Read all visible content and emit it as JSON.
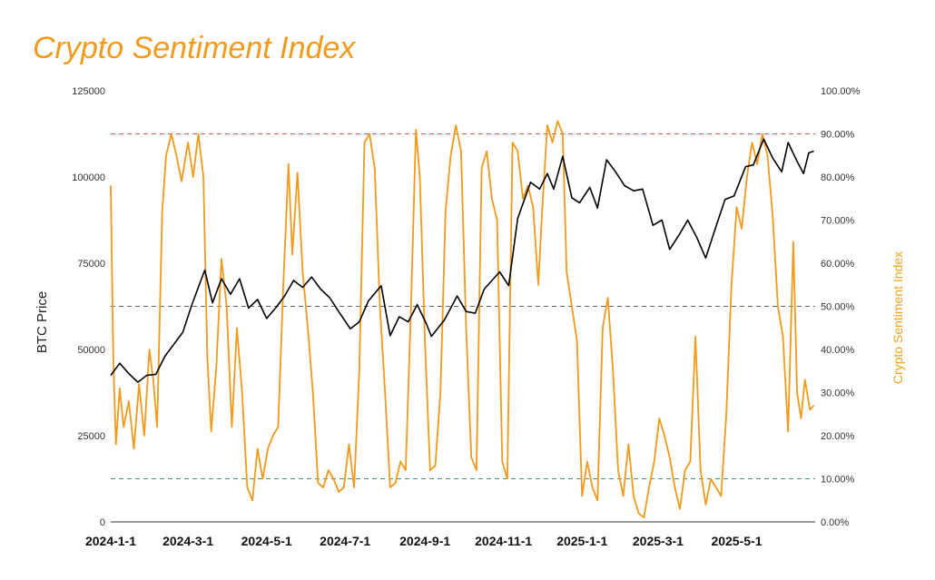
{
  "chart_data": {
    "type": "line",
    "title": "Crypto Sentiment Index",
    "xlabel": "",
    "ylabel_left": "BTC Price",
    "ylabel_right": "Crypto Sentiment Index",
    "x_ticks": [
      "2024-1-1",
      "2024-3-1",
      "2024-5-1",
      "2024-7-1",
      "2024-9-1",
      "2024-11-1",
      "2025-1-1",
      "2025-3-1",
      "2025-5-1"
    ],
    "x_range": [
      "2024-01-01",
      "2025-07-01"
    ],
    "y_left_ticks": [
      "0",
      "25000",
      "50000",
      "75000",
      "100000",
      "125000"
    ],
    "y_left_range": [
      0,
      125000
    ],
    "y_right_ticks": [
      "0.00%",
      "10.00%",
      "20.00%",
      "30.00%",
      "40.00%",
      "50.00%",
      "60.00%",
      "70.00%",
      "80.00%",
      "90.00%",
      "100.00%"
    ],
    "y_right_range": [
      0,
      100
    ],
    "reference_lines": [
      {
        "axis": "right",
        "value": 90,
        "color": "#e05555"
      },
      {
        "axis": "right",
        "value": 50,
        "color": "#666666"
      },
      {
        "axis": "right",
        "value": 10,
        "color": "#5a8f6a"
      }
    ],
    "colors": {
      "title": "#f29a1b",
      "btc": "#000000",
      "sentiment": "#f29a1b",
      "right_label": "#f2a21b"
    },
    "grid": false,
    "series": [
      {
        "axis": "left",
        "color": "#000000",
        "points": [
          [
            "2024-01-01",
            42500
          ],
          [
            "2024-01-08",
            46000
          ],
          [
            "2024-01-15",
            43000
          ],
          [
            "2024-01-22",
            40500
          ],
          [
            "2024-01-29",
            42500
          ],
          [
            "2024-02-05",
            42800
          ],
          [
            "2024-02-12",
            48000
          ],
          [
            "2024-02-19",
            51500
          ],
          [
            "2024-02-26",
            55000
          ],
          [
            "2024-03-04",
            63000
          ],
          [
            "2024-03-11",
            70000
          ],
          [
            "2024-03-14",
            73000
          ],
          [
            "2024-03-20",
            63500
          ],
          [
            "2024-03-27",
            70500
          ],
          [
            "2024-04-03",
            66000
          ],
          [
            "2024-04-10",
            70500
          ],
          [
            "2024-04-17",
            62000
          ],
          [
            "2024-04-24",
            64500
          ],
          [
            "2024-05-01",
            59000
          ],
          [
            "2024-05-08",
            62000
          ],
          [
            "2024-05-15",
            65500
          ],
          [
            "2024-05-22",
            70000
          ],
          [
            "2024-05-29",
            68000
          ],
          [
            "2024-06-05",
            71000
          ],
          [
            "2024-06-12",
            67500
          ],
          [
            "2024-06-19",
            65000
          ],
          [
            "2024-06-26",
            61000
          ],
          [
            "2024-07-05",
            56000
          ],
          [
            "2024-07-12",
            58000
          ],
          [
            "2024-07-19",
            64000
          ],
          [
            "2024-07-29",
            68500
          ],
          [
            "2024-08-05",
            54000
          ],
          [
            "2024-08-12",
            59500
          ],
          [
            "2024-08-19",
            58000
          ],
          [
            "2024-08-26",
            63000
          ],
          [
            "2024-09-02",
            57500
          ],
          [
            "2024-09-06",
            53800
          ],
          [
            "2024-09-16",
            58500
          ],
          [
            "2024-09-26",
            65500
          ],
          [
            "2024-10-03",
            61000
          ],
          [
            "2024-10-10",
            60500
          ],
          [
            "2024-10-17",
            67500
          ],
          [
            "2024-10-29",
            72500
          ],
          [
            "2024-11-05",
            68500
          ],
          [
            "2024-11-12",
            88000
          ],
          [
            "2024-11-22",
            98500
          ],
          [
            "2024-11-29",
            96500
          ],
          [
            "2024-12-05",
            101000
          ],
          [
            "2024-12-10",
            96500
          ],
          [
            "2024-12-17",
            106000
          ],
          [
            "2024-12-24",
            94000
          ],
          [
            "2024-12-30",
            92500
          ],
          [
            "2025-01-07",
            97000
          ],
          [
            "2025-01-13",
            91000
          ],
          [
            "2025-01-20",
            105000
          ],
          [
            "2025-01-27",
            101500
          ],
          [
            "2025-02-03",
            97500
          ],
          [
            "2025-02-10",
            96000
          ],
          [
            "2025-02-17",
            96500
          ],
          [
            "2025-02-25",
            86000
          ],
          [
            "2025-03-04",
            87500
          ],
          [
            "2025-03-10",
            79000
          ],
          [
            "2025-03-17",
            83000
          ],
          [
            "2025-03-24",
            87500
          ],
          [
            "2025-03-31",
            82500
          ],
          [
            "2025-04-07",
            76500
          ],
          [
            "2025-04-14",
            84500
          ],
          [
            "2025-04-22",
            93500
          ],
          [
            "2025-04-29",
            94500
          ],
          [
            "2025-05-08",
            103000
          ],
          [
            "2025-05-14",
            103500
          ],
          [
            "2025-05-22",
            111000
          ],
          [
            "2025-05-29",
            105500
          ],
          [
            "2025-06-05",
            101500
          ],
          [
            "2025-06-10",
            110000
          ],
          [
            "2025-06-17",
            104500
          ],
          [
            "2025-06-22",
            101000
          ],
          [
            "2025-06-26",
            107000
          ],
          [
            "2025-06-30",
            107500
          ]
        ]
      },
      {
        "axis": "right",
        "color": "#f29a1b",
        "points": [
          [
            "2024-01-01",
            78
          ],
          [
            "2024-01-03",
            38
          ],
          [
            "2024-01-05",
            18
          ],
          [
            "2024-01-08",
            31
          ],
          [
            "2024-01-11",
            22
          ],
          [
            "2024-01-15",
            28
          ],
          [
            "2024-01-19",
            17
          ],
          [
            "2024-01-23",
            32
          ],
          [
            "2024-01-27",
            20
          ],
          [
            "2024-01-31",
            40
          ],
          [
            "2024-02-03",
            33
          ],
          [
            "2024-02-06",
            22
          ],
          [
            "2024-02-10",
            72
          ],
          [
            "2024-02-13",
            85
          ],
          [
            "2024-02-17",
            90
          ],
          [
            "2024-02-21",
            85
          ],
          [
            "2024-02-25",
            79
          ],
          [
            "2024-03-01",
            88
          ],
          [
            "2024-03-05",
            80
          ],
          [
            "2024-03-09",
            90
          ],
          [
            "2024-03-13",
            80
          ],
          [
            "2024-03-16",
            38
          ],
          [
            "2024-03-19",
            21
          ],
          [
            "2024-03-23",
            36
          ],
          [
            "2024-03-27",
            61
          ],
          [
            "2024-03-31",
            50
          ],
          [
            "2024-04-04",
            22
          ],
          [
            "2024-04-08",
            45
          ],
          [
            "2024-04-12",
            30
          ],
          [
            "2024-04-16",
            8
          ],
          [
            "2024-04-20",
            5
          ],
          [
            "2024-04-24",
            17
          ],
          [
            "2024-04-28",
            10
          ],
          [
            "2024-05-02",
            17
          ],
          [
            "2024-05-06",
            20
          ],
          [
            "2024-05-10",
            22
          ],
          [
            "2024-05-14",
            55
          ],
          [
            "2024-05-18",
            83
          ],
          [
            "2024-05-21",
            62
          ],
          [
            "2024-05-25",
            81
          ],
          [
            "2024-05-29",
            58
          ],
          [
            "2024-06-02",
            45
          ],
          [
            "2024-06-06",
            30
          ],
          [
            "2024-06-10",
            9
          ],
          [
            "2024-06-14",
            8
          ],
          [
            "2024-06-18",
            12
          ],
          [
            "2024-06-22",
            10
          ],
          [
            "2024-06-26",
            7
          ],
          [
            "2024-06-30",
            8
          ],
          [
            "2024-07-04",
            18
          ],
          [
            "2024-07-08",
            8
          ],
          [
            "2024-07-12",
            35
          ],
          [
            "2024-07-16",
            88
          ],
          [
            "2024-07-20",
            90
          ],
          [
            "2024-07-24",
            82
          ],
          [
            "2024-07-28",
            50
          ],
          [
            "2024-08-01",
            30
          ],
          [
            "2024-08-05",
            8
          ],
          [
            "2024-08-09",
            9
          ],
          [
            "2024-08-13",
            14
          ],
          [
            "2024-08-17",
            12
          ],
          [
            "2024-08-21",
            48
          ],
          [
            "2024-08-25",
            91
          ],
          [
            "2024-08-28",
            80
          ],
          [
            "2024-09-01",
            42
          ],
          [
            "2024-09-05",
            12
          ],
          [
            "2024-09-09",
            13
          ],
          [
            "2024-09-13",
            30
          ],
          [
            "2024-09-17",
            72
          ],
          [
            "2024-09-21",
            85
          ],
          [
            "2024-09-25",
            92
          ],
          [
            "2024-09-29",
            86
          ],
          [
            "2024-10-03",
            45
          ],
          [
            "2024-10-07",
            15
          ],
          [
            "2024-10-11",
            12
          ],
          [
            "2024-10-15",
            82
          ],
          [
            "2024-10-19",
            86
          ],
          [
            "2024-10-23",
            75
          ],
          [
            "2024-10-27",
            70
          ],
          [
            "2024-10-31",
            14
          ],
          [
            "2024-11-04",
            10
          ],
          [
            "2024-11-08",
            88
          ],
          [
            "2024-11-12",
            86
          ],
          [
            "2024-11-16",
            75
          ],
          [
            "2024-11-20",
            78
          ],
          [
            "2024-11-24",
            73
          ],
          [
            "2024-11-28",
            55
          ],
          [
            "2024-12-01",
            72
          ],
          [
            "2024-12-05",
            92
          ],
          [
            "2024-12-09",
            88
          ],
          [
            "2024-12-13",
            93
          ],
          [
            "2024-12-17",
            90
          ],
          [
            "2024-12-20",
            58
          ],
          [
            "2024-12-24",
            50
          ],
          [
            "2024-12-28",
            42
          ],
          [
            "2025-01-01",
            6
          ],
          [
            "2025-01-05",
            14
          ],
          [
            "2025-01-09",
            8
          ],
          [
            "2025-01-13",
            5
          ],
          [
            "2025-01-17",
            45
          ],
          [
            "2025-01-21",
            52
          ],
          [
            "2025-01-25",
            35
          ],
          [
            "2025-01-29",
            12
          ],
          [
            "2025-02-02",
            6
          ],
          [
            "2025-02-06",
            18
          ],
          [
            "2025-02-10",
            6
          ],
          [
            "2025-02-14",
            2
          ],
          [
            "2025-02-18",
            1
          ],
          [
            "2025-02-22",
            8
          ],
          [
            "2025-02-26",
            14
          ],
          [
            "2025-03-02",
            24
          ],
          [
            "2025-03-06",
            20
          ],
          [
            "2025-03-10",
            15
          ],
          [
            "2025-03-14",
            8
          ],
          [
            "2025-03-18",
            3
          ],
          [
            "2025-03-22",
            12
          ],
          [
            "2025-03-26",
            14
          ],
          [
            "2025-03-30",
            43
          ],
          [
            "2025-04-03",
            12
          ],
          [
            "2025-04-07",
            4
          ],
          [
            "2025-04-11",
            10
          ],
          [
            "2025-04-15",
            8
          ],
          [
            "2025-04-19",
            6
          ],
          [
            "2025-04-23",
            25
          ],
          [
            "2025-04-27",
            55
          ],
          [
            "2025-05-01",
            73
          ],
          [
            "2025-05-05",
            68
          ],
          [
            "2025-05-09",
            80
          ],
          [
            "2025-05-13",
            88
          ],
          [
            "2025-05-17",
            83
          ],
          [
            "2025-05-21",
            90
          ],
          [
            "2025-05-25",
            85
          ],
          [
            "2025-05-29",
            71
          ],
          [
            "2025-06-02",
            50
          ],
          [
            "2025-06-06",
            43
          ],
          [
            "2025-06-10",
            21
          ],
          [
            "2025-06-14",
            65
          ],
          [
            "2025-06-17",
            30
          ],
          [
            "2025-06-20",
            24
          ],
          [
            "2025-06-23",
            33
          ],
          [
            "2025-06-27",
            26
          ],
          [
            "2025-06-30",
            27
          ]
        ]
      }
    ]
  }
}
